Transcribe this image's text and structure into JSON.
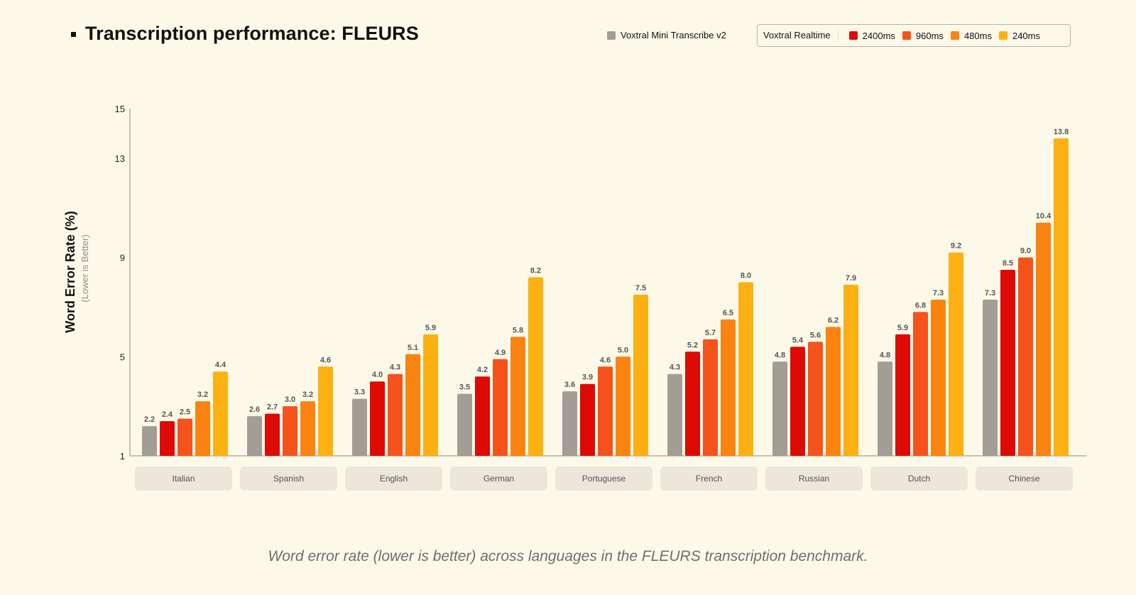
{
  "title": "Transcription performance: FLEURS",
  "legend": {
    "mini_label": "Voxtral Mini Transcribe v2",
    "group_label": "Voxtral Realtime",
    "items": [
      "2400ms",
      "960ms",
      "480ms",
      "240ms"
    ]
  },
  "caption": "Word error rate (lower is better) across languages in the FLEURS transcription benchmark.",
  "colors": {
    "background": "#fdf9e9",
    "mini": "#a29d95",
    "rt_2400": "#dd0a05",
    "rt_960": "#f5521c",
    "rt_480": "#fb8310",
    "rt_240": "#fdb012",
    "category_box": "#ece7db"
  },
  "chart_data": {
    "type": "bar",
    "ylabel": "Word Error Rate (%)",
    "ylabel_note": "(Lower is Better)",
    "ylim": [
      1,
      15
    ],
    "yticks": [
      1,
      5,
      9,
      13,
      15
    ],
    "categories": [
      "Italian",
      "Spanish",
      "English",
      "German",
      "Portuguese",
      "French",
      "Russian",
      "Dutch",
      "Chinese"
    ],
    "series": [
      {
        "name": "Voxtral Mini Transcribe v2",
        "color": "#a29d95",
        "values": [
          2.2,
          2.6,
          3.3,
          3.5,
          3.6,
          4.3,
          4.8,
          4.8,
          7.3
        ]
      },
      {
        "name": "2400ms",
        "color": "#dd0a05",
        "values": [
          2.4,
          2.7,
          4.0,
          4.2,
          3.9,
          5.2,
          5.4,
          5.9,
          8.5
        ]
      },
      {
        "name": "960ms",
        "color": "#f5521c",
        "values": [
          2.5,
          3.0,
          4.3,
          4.9,
          4.6,
          5.7,
          5.6,
          6.8,
          9.0
        ]
      },
      {
        "name": "480ms",
        "color": "#fb8310",
        "values": [
          3.2,
          3.2,
          5.1,
          5.8,
          5.0,
          6.5,
          6.2,
          7.3,
          10.4
        ]
      },
      {
        "name": "240ms",
        "color": "#fdb012",
        "values": [
          4.4,
          4.6,
          5.9,
          8.2,
          7.5,
          8.0,
          7.9,
          9.2,
          13.8
        ]
      }
    ],
    "legend_position": "top-right",
    "grid": false
  }
}
